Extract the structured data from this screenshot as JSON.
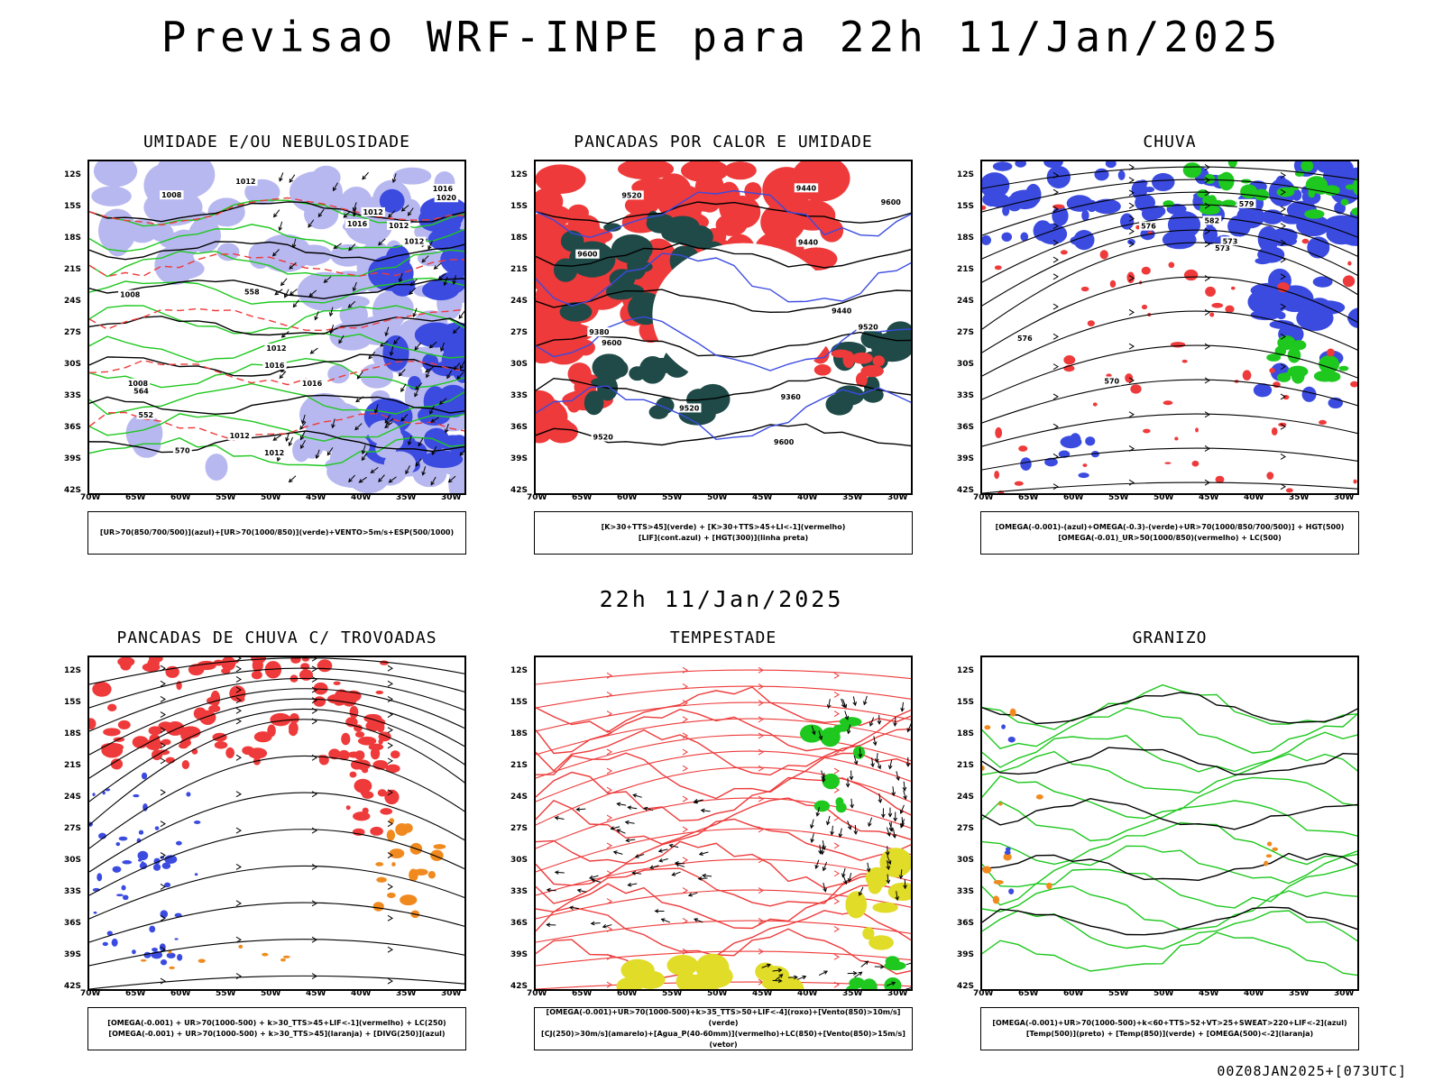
{
  "header": {
    "title": "Previsao WRF-INPE  para 22h 11/Jan/2025"
  },
  "middle": {
    "subtitle": "22h 11/Jan/2025"
  },
  "footer": {
    "run": "00Z08JAN2025+[073UTC]"
  },
  "axes": {
    "lat_labels": [
      "12S",
      "15S",
      "18S",
      "21S",
      "24S",
      "27S",
      "30S",
      "33S",
      "36S",
      "39S",
      "42S"
    ],
    "lon_labels": [
      "70W",
      "65W",
      "60W",
      "55W",
      "50W",
      "45W",
      "40W",
      "35W",
      "30W"
    ]
  },
  "colors": {
    "blue": "#3b4be0",
    "green": "#1ec81e",
    "red": "#ee3a3a",
    "orange": "#f08a1e",
    "yellow": "#e0dc28",
    "darkteal": "#1f4a48",
    "lavender": "#b8b8f0"
  },
  "panels": [
    {
      "title": "UMIDADE E/OU NEBULOSIDADE",
      "legend": [
        "[UR>70(850/700/500)](azul)+[UR>70(1000/850)](verde)+VENTO>5m/s+ESP(500/1000)"
      ]
    },
    {
      "title": "PANCADAS POR CALOR E UMIDADE",
      "legend": [
        "[K>30+TTS>45](verde)  +  [K>30+TTS>45+LI<-1](vermelho)",
        "[LIF](cont.azul)  +  [HGT(300)](linha preta)"
      ]
    },
    {
      "title": "CHUVA",
      "legend": [
        "[OMEGA(-0.001)-(azul)+OMEGA(-0.3)-(verde)+UR>70(1000/850/700/500)]  +  HGT(500)",
        "[OMEGA(-0.01)_UR>50(1000/850)(vermelho) + LC(500)"
      ]
    },
    {
      "title": "PANCADAS DE CHUVA C/ TROVOADAS",
      "legend": [
        "[OMEGA(-0.001) + UR>70(1000-500) + k>30_TTS>45+LIF<-1](vermelho) + LC(250)",
        "[OMEGA(-0.001) + UR>70(1000-500) + k>30_TTS>45](laranja) + [DIVG(250)](azul)"
      ]
    },
    {
      "title": "TEMPESTADE",
      "legend": [
        "[OMEGA(-0.001)+UR>70(1000-500)+k>35_TTS>50+LIF<-4](roxo)+[Vento(850)>10m/s](verde)",
        "[CJ(250)>30m/s](amarelo)+[Agua_P(40-60mm)](vermelho)+LC(850)+[Vento(850)>15m/s](vetor)"
      ]
    },
    {
      "title": "GRANIZO",
      "legend": [
        "[OMEGA(-0.001)+UR>70(1000-500)+k<60+TTS>52+VT>25+SWEAT>220+LIF<-2](azul)",
        "[Temp(500)](preto) + [Temp(850)](verde) + [OMEGA(500)<-2](laranja)"
      ]
    }
  ],
  "contour_labels": {
    "p1": [
      "1012",
      "1012",
      "1012",
      "1008",
      "1012",
      "1012",
      "1008",
      "1016",
      "1012",
      "1008",
      "1012",
      "1016",
      "1020",
      "570",
      "564",
      "558",
      "552",
      "1016",
      "1016"
    ],
    "p2": [
      "9600",
      "9600",
      "9600",
      "9520",
      "9600",
      "9520",
      "9520",
      "9440",
      "9440",
      "9440",
      "9360",
      "9380",
      "9520"
    ],
    "p3": [
      "582",
      "579",
      "576",
      "573",
      "570",
      "576",
      "573"
    ]
  }
}
